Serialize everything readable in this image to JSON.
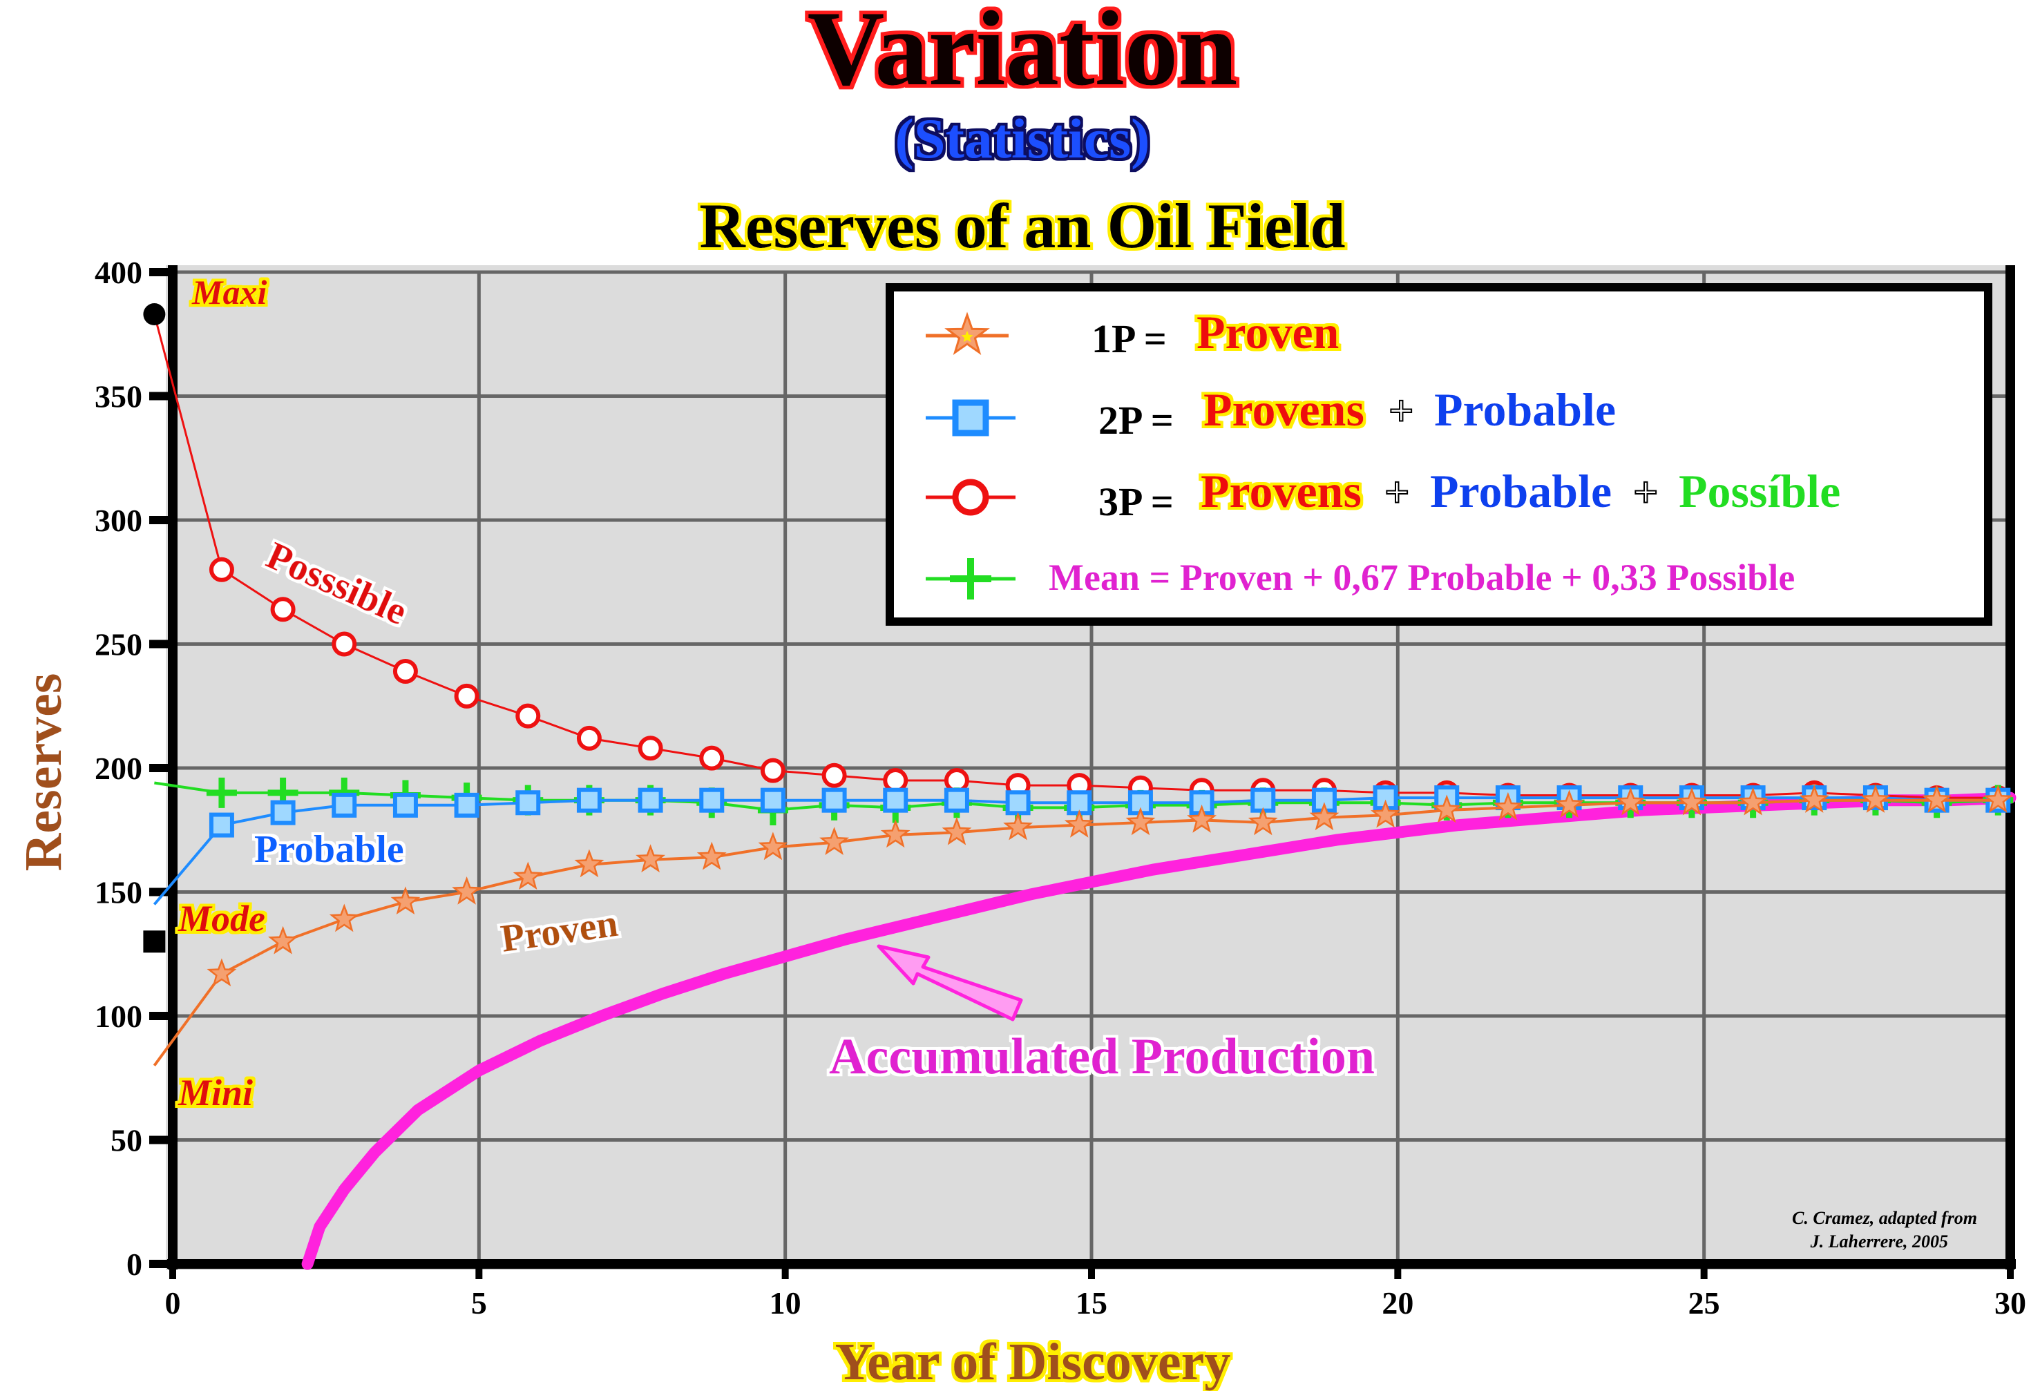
{
  "header": {
    "title": "Variation",
    "subtitle": "(Statistics)",
    "chart_title": "Reserves of an Oil Field"
  },
  "colors": {
    "proven": "#f07028",
    "probable": "#1e8cff",
    "possible": "#ee1111",
    "mean": "#22dd22",
    "accumulated": "#ff22dd",
    "plot_bg": "#dcdcdc",
    "grid": "#666666"
  },
  "legend": {
    "proven_prefix": "1P =",
    "proven_label": "Proven",
    "twop_prefix": "2P =",
    "twop_provens": "Provens",
    "twop_plus": "+",
    "twop_probable": "Probable",
    "threep_prefix": "3P =",
    "threep_provens": "Provens",
    "threep_plus1": "+",
    "threep_probable": "Probable",
    "threep_plus2": "+",
    "threep_possible": "Possíble",
    "mean_label": "Mean = Proven + 0,67 Probable + 0,33 Possible"
  },
  "annotations": {
    "maxi": "Maxi",
    "mode": "Mode",
    "mini": "Mini",
    "possible": "Posssible",
    "probable": "Probable",
    "proven": "Proven",
    "accumulated": "Accumulated Production",
    "credit_line1": "C. Cramez, adapted from",
    "credit_line2": "J. Laherrere, 2005"
  },
  "chart_data": {
    "type": "line",
    "xlabel": "Year of Discovery",
    "ylabel": "Reserves",
    "xlim": [
      0,
      30
    ],
    "ylim": [
      0,
      400
    ],
    "xticks": [
      0,
      5,
      10,
      15,
      20,
      25,
      30
    ],
    "yticks": [
      0,
      50,
      100,
      150,
      200,
      250,
      300,
      350,
      400
    ],
    "grid": true,
    "legend_position": "top-right",
    "series": [
      {
        "key": "possible",
        "x": [
          -0.3,
          0.8,
          1.8,
          2.8,
          3.8,
          4.8,
          5.8,
          6.8,
          7.8,
          8.8,
          9.8,
          10.8,
          11.8,
          12.8,
          13.8,
          14.8,
          15.8,
          16.8,
          17.8,
          18.8,
          19.8,
          20.8,
          21.8,
          22.8,
          23.8,
          24.8,
          25.8,
          26.8,
          27.8,
          28.8,
          29.8
        ],
        "y": [
          383,
          280,
          264,
          250,
          239,
          229,
          221,
          212,
          208,
          204,
          199,
          197,
          195,
          195,
          193,
          193,
          192,
          191,
          191,
          191,
          190,
          190,
          189,
          189,
          189,
          189,
          189,
          190,
          189,
          188,
          188
        ]
      },
      {
        "key": "mean",
        "x": [
          -0.3,
          0.8,
          1.8,
          2.8,
          3.8,
          4.8,
          5.8,
          6.8,
          7.8,
          8.8,
          9.8,
          10.8,
          11.8,
          12.8,
          13.8,
          14.8,
          15.8,
          16.8,
          17.8,
          18.8,
          19.8,
          20.8,
          21.8,
          22.8,
          23.8,
          24.8,
          25.8,
          26.8,
          27.8,
          28.8,
          29.8
        ],
        "y": [
          194,
          190,
          190,
          190,
          189,
          188,
          187,
          187,
          187,
          186,
          183,
          185,
          184,
          186,
          184,
          184,
          185,
          185,
          186,
          186,
          186,
          185,
          186,
          186,
          186,
          186,
          186,
          187,
          187,
          186,
          187
        ]
      },
      {
        "key": "probable",
        "x": [
          -0.3,
          0.8,
          1.8,
          2.8,
          3.8,
          4.8,
          5.8,
          6.8,
          7.8,
          8.8,
          9.8,
          10.8,
          11.8,
          12.8,
          13.8,
          14.8,
          15.8,
          16.8,
          17.8,
          18.8,
          19.8,
          20.8,
          21.8,
          22.8,
          23.8,
          24.8,
          25.8,
          26.8,
          27.8,
          28.8,
          29.8
        ],
        "y": [
          145,
          177,
          182,
          185,
          185,
          185,
          186,
          187,
          187,
          187,
          187,
          187,
          187,
          187,
          186,
          186,
          186,
          186,
          187,
          187,
          188,
          188,
          188,
          188,
          188,
          188,
          188,
          188,
          188,
          187,
          187
        ]
      },
      {
        "key": "proven",
        "x": [
          -0.3,
          0.8,
          1.8,
          2.8,
          3.8,
          4.8,
          5.8,
          6.8,
          7.8,
          8.8,
          9.8,
          10.8,
          11.8,
          12.8,
          13.8,
          14.8,
          15.8,
          16.8,
          17.8,
          18.8,
          19.8,
          20.8,
          21.8,
          22.8,
          23.8,
          24.8,
          25.8,
          26.8,
          27.8,
          28.8,
          29.8
        ],
        "y": [
          80,
          117,
          130,
          139,
          146,
          150,
          156,
          161,
          163,
          164,
          168,
          170,
          173,
          174,
          176,
          177,
          178,
          179,
          178,
          180,
          181,
          183,
          184,
          185,
          186,
          186,
          186,
          187,
          187,
          187,
          187
        ]
      },
      {
        "key": "accumulated",
        "x": [
          2.2,
          2.4,
          2.8,
          3.3,
          4,
          5,
          6,
          7,
          8,
          9,
          10,
          11,
          12,
          13,
          14,
          15,
          16,
          17,
          18,
          19,
          20,
          21,
          22,
          23,
          24,
          25,
          26,
          27,
          28,
          29,
          30
        ],
        "y": [
          0,
          15,
          30,
          45,
          62,
          78,
          90,
          100,
          109,
          117,
          124,
          131,
          137,
          143,
          149,
          154,
          159,
          163,
          167,
          171,
          174,
          177,
          179,
          181,
          183,
          184,
          185,
          186,
          187,
          187,
          188
        ]
      }
    ],
    "points": {
      "maxi": {
        "x": -0.3,
        "y": 383
      },
      "mode": {
        "x": -0.3,
        "y": 130
      }
    }
  }
}
